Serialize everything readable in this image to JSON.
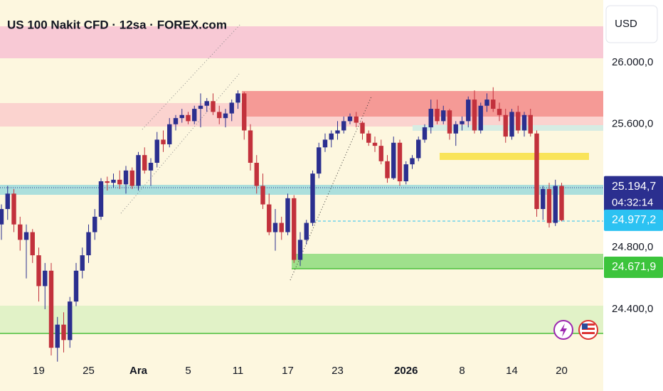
{
  "chart_data": {
    "type": "candlestick",
    "title": "US 100 Nakit CFD · 12sa · FOREX.com",
    "currency": "USD",
    "categories": [
      null,
      null,
      null,
      null,
      null,
      null,
      "19",
      null,
      null,
      null,
      null,
      null,
      null,
      null,
      "25",
      null,
      null,
      null,
      null,
      null,
      null,
      null,
      "Ara",
      null,
      null,
      null,
      null,
      null,
      null,
      null,
      "5",
      null,
      null,
      null,
      null,
      null,
      null,
      null,
      "11",
      null,
      null,
      null,
      null,
      null,
      null,
      null,
      "17",
      null,
      null,
      null,
      null,
      null,
      null,
      null,
      "23",
      null,
      null,
      null,
      null,
      null,
      null,
      null,
      null,
      null,
      null,
      "2026",
      null,
      null,
      null,
      null,
      null,
      null,
      null,
      null,
      "8",
      null,
      null,
      null,
      null,
      null,
      null,
      null,
      "14",
      null,
      null,
      null,
      null,
      null,
      null,
      null,
      "20"
    ],
    "open": [
      24950,
      25050,
      25150,
      24950,
      24850,
      24900,
      24750,
      24550,
      24650,
      24150,
      24300,
      24200,
      24450,
      24650,
      24750,
      24900,
      25000,
      25230,
      25220,
      25240,
      25210,
      25300,
      25200,
      25400,
      25300,
      25350,
      25500,
      25470,
      25600,
      25640,
      25660,
      25620,
      25700,
      25720,
      25750,
      25680,
      25640,
      25670,
      25740,
      25800,
      25560,
      25350,
      25200,
      25080,
      24900,
      24960,
      24900,
      25120,
      24720,
      24850,
      24960,
      25280,
      25450,
      25500,
      25540,
      25560,
      25620,
      25650,
      25610,
      25540,
      25480,
      25460,
      25360,
      25250,
      25480,
      25230,
      25340,
      25380,
      25500,
      25580,
      25700,
      25620,
      25690,
      25540,
      25600,
      25620,
      25760,
      25560,
      25720,
      25760,
      25700,
      25660,
      25520,
      25680,
      25560,
      25660,
      25540,
      25050,
      25180,
      24960,
      25200
    ],
    "high": [
      25080,
      25200,
      25180,
      25000,
      24950,
      24920,
      24800,
      24700,
      24700,
      24350,
      24380,
      24480,
      24700,
      24800,
      24950,
      25050,
      25250,
      25260,
      25280,
      25300,
      25330,
      25320,
      25420,
      25450,
      25380,
      25550,
      25560,
      25640,
      25660,
      25700,
      25680,
      25720,
      25800,
      25770,
      25800,
      25720,
      25700,
      25760,
      25820,
      25810,
      25600,
      25400,
      25280,
      25150,
      25050,
      25000,
      25150,
      25140,
      24900,
      24980,
      25300,
      25480,
      25540,
      25560,
      25620,
      25650,
      25670,
      25680,
      25620,
      25560,
      25520,
      25500,
      25400,
      25520,
      25500,
      25360,
      25400,
      25520,
      25600,
      25760,
      25760,
      25720,
      25700,
      25620,
      25650,
      25780,
      25820,
      25740,
      25800,
      25840,
      25740,
      25700,
      25700,
      25720,
      25680,
      25700,
      25560,
      25200,
      25220,
      25240,
      25220
    ],
    "low": [
      24850,
      24980,
      24900,
      24780,
      24600,
      24700,
      24450,
      24400,
      24100,
      24060,
      24120,
      24150,
      24420,
      24600,
      24700,
      24850,
      24980,
      25170,
      25190,
      25180,
      25150,
      25180,
      25170,
      25280,
      25200,
      25320,
      25420,
      25450,
      25560,
      25610,
      25600,
      25600,
      25580,
      25680,
      25660,
      25600,
      25580,
      25620,
      25700,
      25500,
      25300,
      25150,
      25050,
      24880,
      24780,
      24850,
      24880,
      24700,
      24680,
      24820,
      24940,
      25250,
      25420,
      25450,
      25500,
      25540,
      25600,
      25580,
      25500,
      25460,
      25420,
      25340,
      25220,
      25240,
      25200,
      25210,
      25310,
      25360,
      25480,
      25540,
      25600,
      25600,
      25500,
      25460,
      25560,
      25580,
      25540,
      25540,
      25680,
      25680,
      25620,
      25480,
      25500,
      25540,
      25520,
      25520,
      25000,
      24980,
      24930,
      24940,
      24970
    ],
    "close": [
      25050,
      25150,
      24950,
      24850,
      24900,
      24750,
      24550,
      24650,
      24150,
      24300,
      24200,
      24450,
      24650,
      24750,
      24900,
      25000,
      25230,
      25220,
      25240,
      25210,
      25300,
      25200,
      25400,
      25300,
      25350,
      25500,
      25470,
      25600,
      25640,
      25660,
      25620,
      25700,
      25720,
      25750,
      25680,
      25640,
      25670,
      25740,
      25800,
      25560,
      25350,
      25200,
      25080,
      24900,
      24960,
      24900,
      25120,
      24720,
      24850,
      24960,
      25280,
      25450,
      25500,
      25540,
      25560,
      25620,
      25650,
      25610,
      25540,
      25480,
      25460,
      25360,
      25250,
      25480,
      25230,
      25340,
      25380,
      25500,
      25580,
      25700,
      25620,
      25690,
      25540,
      25600,
      25620,
      25760,
      25560,
      25720,
      25760,
      25700,
      25660,
      25520,
      25680,
      25560,
      25660,
      25540,
      25050,
      25180,
      24960,
      25200,
      24977.2
    ],
    "up_color": "#2b2f8f",
    "down_color": "#c2313c",
    "ylim": [
      24054,
      26406
    ],
    "yticks": [
      {
        "value": 24400,
        "label": "24.400,0"
      },
      {
        "value": 24800,
        "label": "24.800,0"
      },
      {
        "value": 25600,
        "label": "25.600,0"
      },
      {
        "value": 26000,
        "label": "26.000,0"
      }
    ],
    "price_labels": [
      {
        "value": 25194.7,
        "label": "25.194,7",
        "color": "#2b2f8f"
      },
      {
        "value": 24977.2,
        "label": "24.977,2",
        "color": "#2cc2f2"
      },
      {
        "value": 24671.9,
        "label": "24.671,9",
        "color": "#3cc43c"
      }
    ],
    "countdown": "04:32:14"
  }
}
